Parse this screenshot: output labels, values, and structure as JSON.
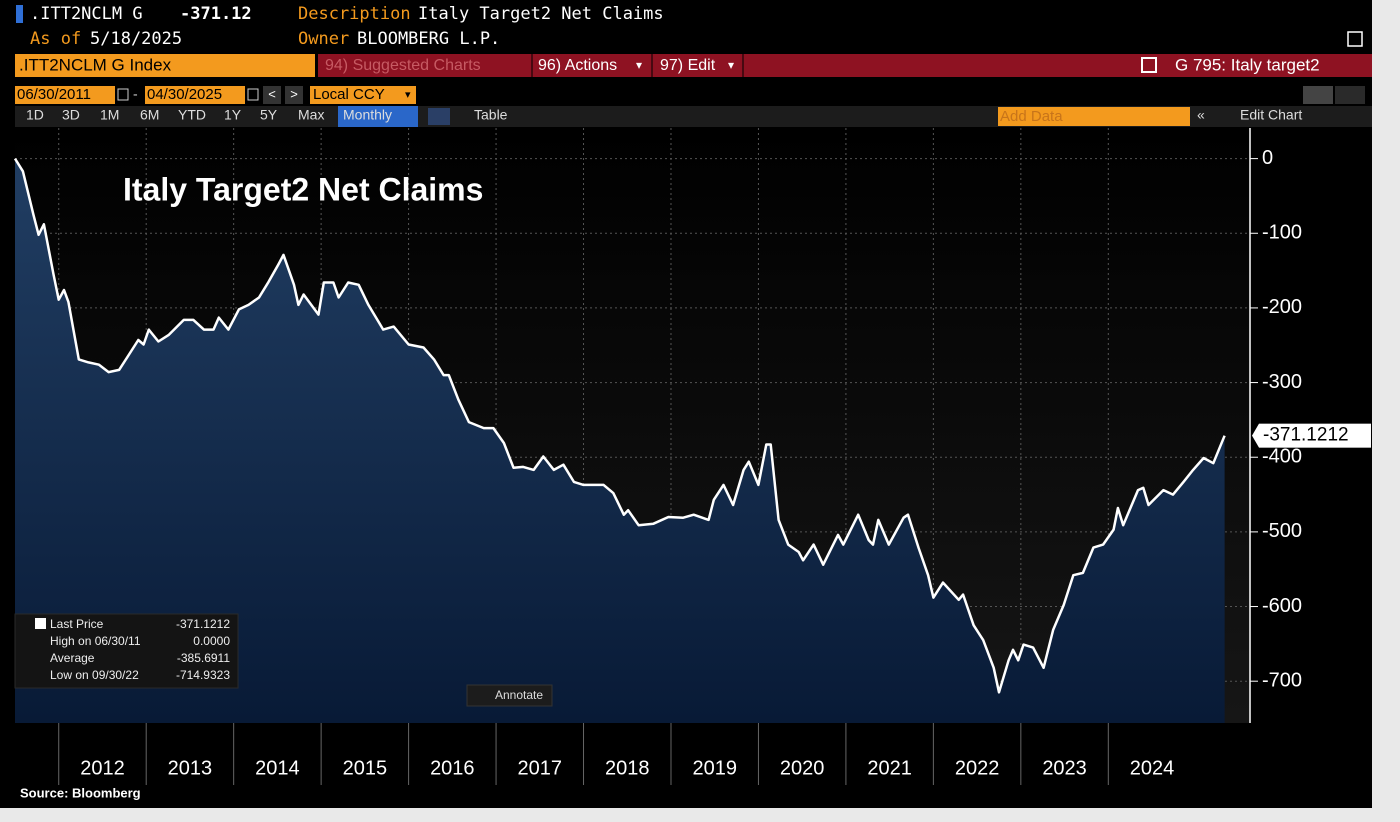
{
  "header": {
    "ticker": ".ITT2NCLM G",
    "price": "-371.12",
    "description_label": "Description",
    "description": "Italy Target2 Net Claims",
    "as_of_label": "As of",
    "as_of": "5/18/2025",
    "owner_label": "Owner",
    "owner": "BLOOMBERG L.P."
  },
  "toolbar": {
    "security": ".ITT2NCLM G Index",
    "suggested": "94) Suggested Charts",
    "actions": "96) Actions",
    "edit": "97) Edit",
    "chart_id": "G 795: Italy target2",
    "start_date": "06/30/2011",
    "end_date": "04/30/2025",
    "currency": "Local CCY",
    "ranges": [
      "1D",
      "3D",
      "1M",
      "6M",
      "YTD",
      "1Y",
      "5Y",
      "Max"
    ],
    "period": "Monthly",
    "table": "Table",
    "add_data": "Add Data",
    "edit_chart": "Edit Chart",
    "annotate": "Annotate"
  },
  "chart_data": {
    "type": "line",
    "title": "Italy Target2 Net Claims",
    "source": "Source: Bloomberg",
    "xlim": [
      2011.5,
      2025.62
    ],
    "xticks": [
      2012,
      2013,
      2014,
      2015,
      2016,
      2017,
      2018,
      2019,
      2020,
      2021,
      2022,
      2023,
      2024
    ],
    "ylim": [
      -756,
      41
    ],
    "yticks": [
      0,
      -100,
      -200,
      -300,
      -400,
      -500,
      -600,
      -700
    ],
    "grid": true,
    "series": [
      {
        "name": "Last Price",
        "color": "#ffffff",
        "last_label": "-371.1212",
        "x": [
          2011.5,
          2011.59,
          2011.71,
          2011.77,
          2011.83,
          2011.94,
          2012.0,
          2012.06,
          2012.11,
          2012.23,
          2012.34,
          2012.46,
          2012.57,
          2012.69,
          2012.8,
          2012.91,
          2012.97,
          2013.03,
          2013.14,
          2013.26,
          2013.43,
          2013.54,
          2013.66,
          2013.77,
          2013.83,
          2013.94,
          2014.06,
          2014.17,
          2014.29,
          2014.4,
          2014.51,
          2014.57,
          2014.69,
          2014.74,
          2014.8,
          2014.97,
          2015.03,
          2015.14,
          2015.2,
          2015.31,
          2015.43,
          2015.54,
          2015.71,
          2015.83,
          2016.0,
          2016.17,
          2016.29,
          2016.4,
          2016.46,
          2016.57,
          2016.69,
          2016.86,
          2016.97,
          2017.09,
          2017.2,
          2017.31,
          2017.43,
          2017.54,
          2017.66,
          2017.77,
          2017.89,
          2018.0,
          2018.11,
          2018.23,
          2018.34,
          2018.46,
          2018.51,
          2018.63,
          2018.8,
          2018.97,
          2019.14,
          2019.26,
          2019.43,
          2019.49,
          2019.6,
          2019.71,
          2019.83,
          2019.89,
          2020.0,
          2020.09,
          2020.14,
          2020.23,
          2020.34,
          2020.46,
          2020.51,
          2020.63,
          2020.74,
          2020.91,
          2020.97,
          2021.14,
          2021.26,
          2021.31,
          2021.37,
          2021.49,
          2021.66,
          2021.71,
          2021.83,
          2021.94,
          2022.0,
          2022.11,
          2022.29,
          2022.34,
          2022.46,
          2022.57,
          2022.69,
          2022.75,
          2022.86,
          2022.91,
          2022.97,
          2023.03,
          2023.14,
          2023.26,
          2023.37,
          2023.49,
          2023.6,
          2023.71,
          2023.83,
          2023.94,
          2024.06,
          2024.11,
          2024.17,
          2024.34,
          2024.4,
          2024.46,
          2024.63,
          2024.74,
          2024.86,
          2024.97,
          2025.09,
          2025.2,
          2025.33
        ],
        "values": [
          0,
          -17,
          -75,
          -102,
          -88,
          -155,
          -189,
          -176,
          -192,
          -269,
          -273,
          -276,
          -286,
          -283,
          -263,
          -243,
          -249,
          -229,
          -245,
          -236,
          -216,
          -216,
          -229,
          -229,
          -213,
          -229,
          -202,
          -196,
          -186,
          -165,
          -142,
          -129,
          -169,
          -196,
          -182,
          -209,
          -166,
          -166,
          -186,
          -166,
          -169,
          -196,
          -229,
          -225,
          -249,
          -253,
          -269,
          -290,
          -290,
          -323,
          -353,
          -361,
          -361,
          -381,
          -414,
          -413,
          -417,
          -399,
          -417,
          -410,
          -433,
          -437,
          -437,
          -437,
          -448,
          -477,
          -471,
          -491,
          -489,
          -480,
          -481,
          -477,
          -484,
          -457,
          -437,
          -464,
          -417,
          -406,
          -437,
          -383,
          -383,
          -484,
          -517,
          -527,
          -538,
          -517,
          -544,
          -504,
          -517,
          -477,
          -511,
          -517,
          -484,
          -517,
          -481,
          -477,
          -521,
          -558,
          -588,
          -568,
          -591,
          -584,
          -625,
          -645,
          -682,
          -714.9323,
          -672,
          -658,
          -672,
          -651,
          -655,
          -682,
          -631,
          -598,
          -558,
          -555,
          -521,
          -517,
          -497,
          -468,
          -491,
          -444,
          -441,
          -464,
          -444,
          -450,
          -433,
          -417,
          -401,
          -408,
          -371.1212
        ]
      }
    ],
    "legend_stats": [
      {
        "label": "High on 06/30/11",
        "value": "0.0000"
      },
      {
        "label": "Average",
        "value": "-385.6911"
      },
      {
        "label": "Low on 09/30/22",
        "value": "-714.9323"
      }
    ]
  }
}
